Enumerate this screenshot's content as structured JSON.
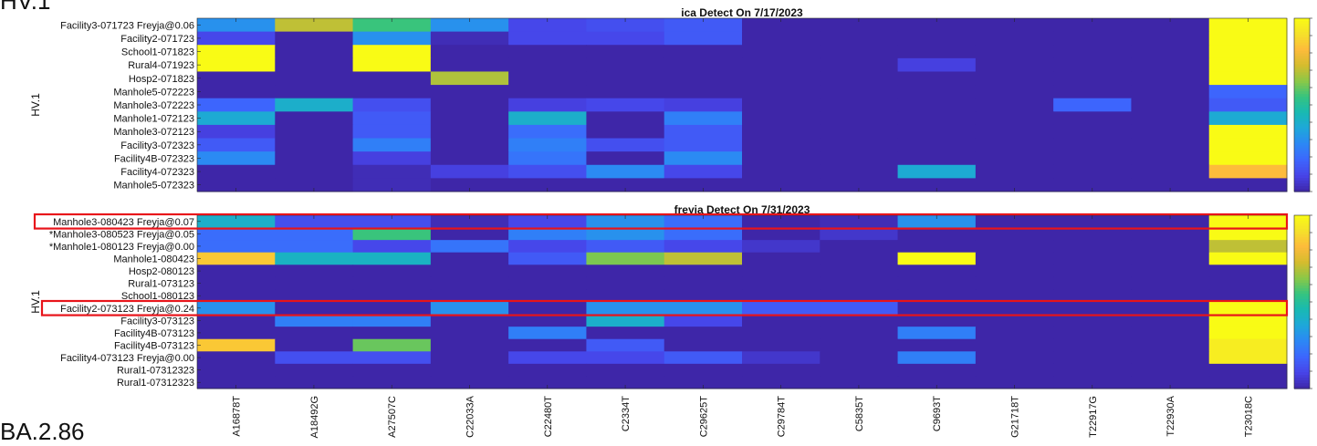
{
  "corner_labels": {
    "top": "HV.1",
    "bottom": "BA.2.86"
  },
  "colormap": [
    "#3e26a8",
    "#4744e8",
    "#3d66fd",
    "#2c87f5",
    "#1ea7da",
    "#18b9b3",
    "#35c47f",
    "#8bc847",
    "#d5bc2e",
    "#fdbb3b",
    "#f5e12a",
    "#f9fb15"
  ],
  "highlight_color": "#e8141a",
  "chart_data": [
    {
      "type": "heatmap",
      "title": "ica Detect On 7/17/2023",
      "ylabel": "HV.1",
      "xlabel": "",
      "x_tick_labels_visible": false,
      "columns": [
        "A16878T",
        "A18492G",
        "A27507C",
        "C22033A",
        "C22480T",
        "C2334T",
        "C29625T",
        "C29784T",
        "C5835T",
        "C9693T",
        "G21718T",
        "T22917G",
        "T22930A",
        "T23018C"
      ],
      "rows": [
        "Facility3-071723 Freyja@0.06",
        "Facility2-071723",
        "School1-071823",
        "Rural4-071923",
        "Hosp2-071823",
        "Manhole5-072223",
        "Manhole3-072223",
        "Manhole1-072123",
        "Manhole3-072123",
        "Facility3-072323",
        "Facility4B-072323",
        "Facility4-072323",
        "Manhole5-072323"
      ],
      "values": [
        [
          0.3,
          0.7,
          0.55,
          0.3,
          0.1,
          0.12,
          0.15,
          0.0,
          0.0,
          0.0,
          0.0,
          0.0,
          0.0,
          1.0
        ],
        [
          0.1,
          0.0,
          0.3,
          0.02,
          0.1,
          0.1,
          0.15,
          0.0,
          0.0,
          0.0,
          0.0,
          0.0,
          0.0,
          1.0
        ],
        [
          1.0,
          0.0,
          1.0,
          0.0,
          0.0,
          0.0,
          0.0,
          0.0,
          0.0,
          0.0,
          0.0,
          0.0,
          0.0,
          1.0
        ],
        [
          1.0,
          0.0,
          1.0,
          0.0,
          0.0,
          0.0,
          0.0,
          0.0,
          0.0,
          0.08,
          0.0,
          0.0,
          0.0,
          1.0
        ],
        [
          0.0,
          0.0,
          0.0,
          0.68,
          0.0,
          0.0,
          0.0,
          0.0,
          0.0,
          0.0,
          0.0,
          0.0,
          0.0,
          1.0
        ],
        [
          0.0,
          0.0,
          0.0,
          0.0,
          0.0,
          0.0,
          0.0,
          0.0,
          0.0,
          0.0,
          0.0,
          0.0,
          0.0,
          0.18
        ],
        [
          0.18,
          0.4,
          0.12,
          0.0,
          0.08,
          0.1,
          0.08,
          0.0,
          0.0,
          0.0,
          0.0,
          0.18,
          0.0,
          0.15
        ],
        [
          0.38,
          0.0,
          0.15,
          0.0,
          0.4,
          0.0,
          0.25,
          0.0,
          0.0,
          0.0,
          0.0,
          0.0,
          0.0,
          0.38
        ],
        [
          0.08,
          0.0,
          0.15,
          0.0,
          0.2,
          0.0,
          0.15,
          0.0,
          0.0,
          0.0,
          0.0,
          0.0,
          0.0,
          1.0
        ],
        [
          0.15,
          0.0,
          0.25,
          0.0,
          0.25,
          0.12,
          0.15,
          0.0,
          0.0,
          0.0,
          0.0,
          0.0,
          0.0,
          1.0
        ],
        [
          0.28,
          0.0,
          0.08,
          0.0,
          0.22,
          0.0,
          0.28,
          0.0,
          0.0,
          0.0,
          0.0,
          0.0,
          0.0,
          1.0
        ],
        [
          0.0,
          0.0,
          0.02,
          0.08,
          0.12,
          0.28,
          0.1,
          0.0,
          0.0,
          0.38,
          0.0,
          0.0,
          0.0,
          0.82
        ],
        [
          0.0,
          0.0,
          0.02,
          0.0,
          0.0,
          0.0,
          0.0,
          0.0,
          0.0,
          0.0,
          0.0,
          0.0,
          0.0,
          0.0
        ]
      ]
    },
    {
      "type": "heatmap",
      "title": "freyja Detect On 7/31/2023",
      "ylabel": "HV.1",
      "xlabel": "",
      "x_tick_labels_visible": true,
      "columns": [
        "A16878T",
        "A18492G",
        "A27507C",
        "C22033A",
        "C22480T",
        "C2334T",
        "C29625T",
        "C29784T",
        "C5835T",
        "C9693T",
        "G21718T",
        "T22917G",
        "T22930A",
        "T23018C"
      ],
      "rows": [
        "Manhole3-080423 Freyja@0.07",
        "*Manhole3-080523 Freyja@0.05",
        "*Manhole1-080123 Freyja@0.00",
        "Manhole1-080423",
        "Hosp2-080123",
        "Rural1-073123",
        "School1-080123",
        "Facility2-073123 Freyja@0.24",
        "Facility3-073123",
        "Facility4B-073123",
        "Facility4B-073123",
        "Facility4-073123 Freyja@0.00",
        "Rural1-07312323",
        "Rural1-07312323"
      ],
      "highlighted_rows": [
        "Manhole3-080423 Freyja@0.07",
        "Facility2-073123 Freyja@0.24"
      ],
      "values": [
        [
          0.4,
          0.12,
          0.12,
          0.02,
          0.1,
          0.3,
          0.2,
          0.0,
          0.02,
          0.3,
          0.0,
          0.0,
          0.0,
          1.0
        ],
        [
          0.2,
          0.2,
          0.55,
          0.0,
          0.25,
          0.3,
          0.2,
          0.0,
          0.05,
          0.0,
          0.0,
          0.0,
          0.0,
          1.0
        ],
        [
          0.2,
          0.2,
          0.1,
          0.22,
          0.1,
          0.15,
          0.1,
          0.05,
          0.0,
          0.0,
          0.0,
          0.0,
          0.0,
          0.7
        ],
        [
          0.85,
          0.42,
          0.42,
          0.0,
          0.15,
          0.62,
          0.7,
          0.0,
          0.0,
          1.0,
          0.0,
          0.0,
          0.0,
          1.0
        ],
        [
          0.0,
          0.0,
          0.0,
          0.0,
          0.0,
          0.0,
          0.0,
          0.0,
          0.0,
          0.0,
          0.0,
          0.0,
          0.0,
          0.0
        ],
        [
          0.0,
          0.0,
          0.0,
          0.0,
          0.0,
          0.0,
          0.0,
          0.0,
          0.0,
          0.0,
          0.0,
          0.0,
          0.0,
          0.0
        ],
        [
          0.0,
          0.0,
          0.0,
          0.0,
          0.0,
          0.0,
          0.0,
          0.0,
          0.0,
          0.0,
          0.0,
          0.0,
          0.0,
          0.0
        ],
        [
          0.3,
          0.0,
          0.0,
          0.3,
          0.0,
          0.3,
          0.3,
          0.15,
          0.15,
          0.0,
          0.0,
          0.0,
          0.0,
          1.0
        ],
        [
          0.0,
          0.25,
          0.25,
          0.0,
          0.0,
          0.4,
          0.1,
          0.0,
          0.0,
          0.0,
          0.0,
          0.0,
          0.0,
          1.0
        ],
        [
          0.0,
          0.0,
          0.0,
          0.0,
          0.25,
          0.0,
          0.0,
          0.0,
          0.0,
          0.25,
          0.0,
          0.0,
          0.0,
          1.0
        ],
        [
          0.85,
          0.0,
          0.6,
          0.0,
          0.0,
          0.15,
          0.0,
          0.0,
          0.0,
          0.0,
          0.0,
          0.0,
          0.0,
          0.95
        ],
        [
          0.0,
          0.12,
          0.12,
          0.0,
          0.1,
          0.1,
          0.15,
          0.05,
          0.0,
          0.25,
          0.0,
          0.0,
          0.0,
          0.95
        ],
        [
          0.0,
          0.0,
          0.0,
          0.0,
          0.0,
          0.0,
          0.0,
          0.0,
          0.0,
          0.0,
          0.0,
          0.0,
          0.0,
          0.0
        ],
        [
          0.0,
          0.0,
          0.0,
          0.0,
          0.0,
          0.0,
          0.0,
          0.0,
          0.0,
          0.0,
          0.0,
          0.0,
          0.0,
          0.0
        ]
      ]
    }
  ]
}
